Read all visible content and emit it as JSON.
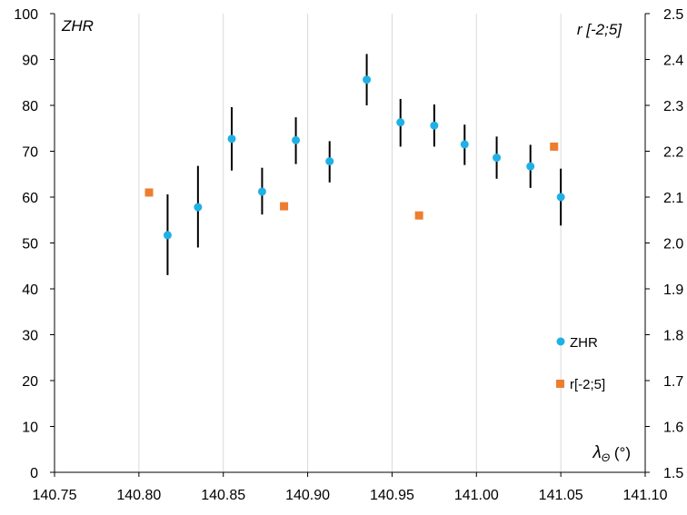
{
  "chart_data": {
    "type": "scatter",
    "x_axis": {
      "label_main": "λ",
      "label_sub": "Θ",
      "label_unit": " (°)",
      "range": [
        140.75,
        141.1
      ],
      "ticks": [
        "140.75",
        "140.80",
        "140.85",
        "140.90",
        "140.95",
        "141.00",
        "141.05",
        "141.10"
      ],
      "tick_values": [
        140.75,
        140.8,
        140.85,
        140.9,
        140.95,
        141.0,
        141.05,
        141.1
      ]
    },
    "y_axis_left": {
      "label": "ZHR",
      "range": [
        0,
        100
      ],
      "ticks": [
        "0",
        "10",
        "20",
        "30",
        "40",
        "50",
        "60",
        "70",
        "80",
        "90",
        "100"
      ],
      "tick_values": [
        0,
        10,
        20,
        30,
        40,
        50,
        60,
        70,
        80,
        90,
        100
      ]
    },
    "y_axis_right": {
      "label": "r [-2;5]",
      "range": [
        1.5,
        2.5
      ],
      "ticks": [
        "1.5",
        "1.6",
        "1.7",
        "1.8",
        "1.9",
        "2.0",
        "2.1",
        "2.2",
        "2.3",
        "2.4",
        "2.5"
      ],
      "tick_values": [
        1.5,
        1.6,
        1.7,
        1.8,
        1.9,
        2.0,
        2.1,
        2.2,
        2.3,
        2.4,
        2.5
      ]
    },
    "grid": "vertical",
    "legend": {
      "placement": "bottom-right"
    },
    "series": [
      {
        "name": "ZHR",
        "axis": "left",
        "marker": "circle",
        "color": "#1fb0e6",
        "errorbar_color": "#000000",
        "points": [
          {
            "x": 140.817,
            "y": 51.7,
            "ylow": 43.0,
            "yhigh": 60.6
          },
          {
            "x": 140.835,
            "y": 57.8,
            "ylow": 49.0,
            "yhigh": 66.8
          },
          {
            "x": 140.855,
            "y": 72.7,
            "ylow": 65.8,
            "yhigh": 79.6
          },
          {
            "x": 140.873,
            "y": 61.2,
            "ylow": 56.2,
            "yhigh": 66.4
          },
          {
            "x": 140.893,
            "y": 72.4,
            "ylow": 67.2,
            "yhigh": 77.4
          },
          {
            "x": 140.913,
            "y": 67.8,
            "ylow": 63.2,
            "yhigh": 72.2
          },
          {
            "x": 140.935,
            "y": 85.6,
            "ylow": 80.0,
            "yhigh": 91.2
          },
          {
            "x": 140.955,
            "y": 76.3,
            "ylow": 71.0,
            "yhigh": 81.4
          },
          {
            "x": 140.975,
            "y": 75.6,
            "ylow": 71.0,
            "yhigh": 80.2
          },
          {
            "x": 140.993,
            "y": 71.5,
            "ylow": 67.0,
            "yhigh": 75.8
          },
          {
            "x": 141.012,
            "y": 68.6,
            "ylow": 64.0,
            "yhigh": 73.2
          },
          {
            "x": 141.032,
            "y": 66.7,
            "ylow": 62.0,
            "yhigh": 71.4
          },
          {
            "x": 141.05,
            "y": 60.0,
            "ylow": 53.8,
            "yhigh": 66.2
          }
        ]
      },
      {
        "name": "r[-2;5]",
        "axis": "right",
        "marker": "square",
        "color": "#ed7d31",
        "points": [
          {
            "x": 140.806,
            "y": 2.11
          },
          {
            "x": 140.886,
            "y": 2.08
          },
          {
            "x": 140.966,
            "y": 2.06
          },
          {
            "x": 141.046,
            "y": 2.21
          }
        ]
      }
    ]
  }
}
